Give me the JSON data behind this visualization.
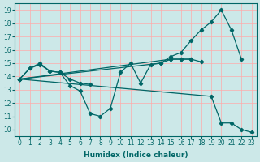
{
  "xlabel": "Humidex (Indice chaleur)",
  "bg_color": "#cce8e8",
  "grid_color": "#ffaaaa",
  "line_color": "#006666",
  "xlim": [
    -0.5,
    23.5
  ],
  "ylim": [
    9.5,
    19.5
  ],
  "yticks": [
    10,
    11,
    12,
    13,
    14,
    15,
    16,
    17,
    18,
    19
  ],
  "xticks": [
    0,
    1,
    2,
    3,
    4,
    5,
    6,
    7,
    8,
    9,
    10,
    11,
    12,
    13,
    14,
    15,
    16,
    17,
    18,
    19,
    20,
    21,
    22,
    23
  ],
  "lines": [
    [
      0,
      1,
      2,
      3,
      4,
      5,
      6,
      7,
      8,
      9,
      10,
      11,
      12,
      13,
      14,
      15,
      16,
      17
    ],
    [
      13.8,
      14.6,
      14.9,
      14.4,
      14.3,
      13.3,
      12.9,
      11.2,
      11.0,
      11.6,
      14.3,
      15.0,
      13.5,
      14.9,
      15.0,
      15.3,
      15.3,
      15.3
    ],
    [
      0,
      1,
      2,
      3,
      4,
      5,
      6,
      7
    ],
    [
      13.8,
      14.6,
      15.0,
      14.4,
      14.3,
      13.8,
      13.5,
      13.4
    ],
    [
      0,
      15,
      16,
      17,
      18
    ],
    [
      13.8,
      15.3,
      15.3,
      15.3,
      15.1
    ],
    [
      0,
      14,
      15,
      16,
      17,
      18,
      19,
      20,
      21,
      22
    ],
    [
      13.8,
      15.0,
      15.5,
      15.8,
      16.7,
      17.5,
      18.1,
      19.0,
      17.5,
      15.3
    ],
    [
      0,
      19,
      20,
      21,
      22,
      23
    ],
    [
      13.8,
      12.5,
      10.5,
      10.5,
      10.0,
      9.8
    ]
  ]
}
